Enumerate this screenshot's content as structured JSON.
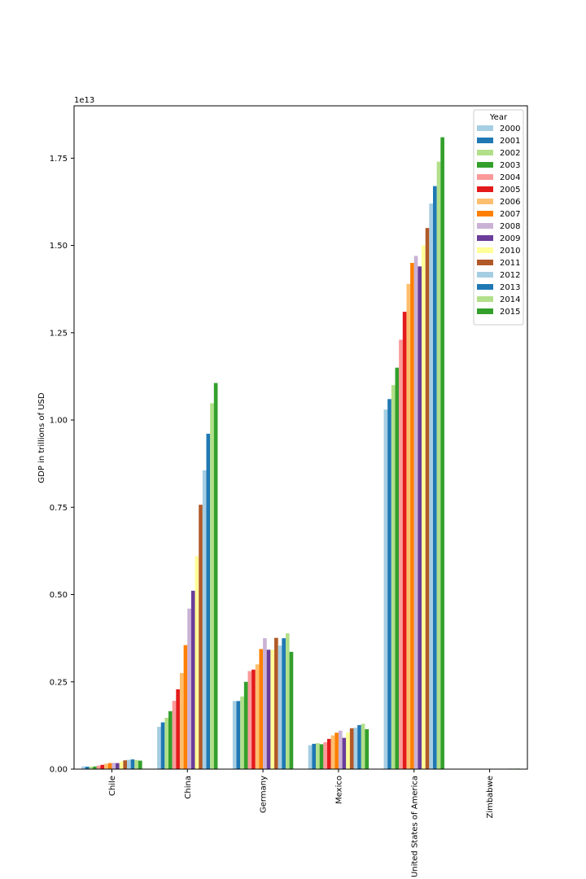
{
  "chart_data": {
    "type": "bar",
    "title": "",
    "xlabel": "",
    "ylabel": "GDP in trillions of USD",
    "offset_text": "1e13",
    "ylim": [
      0,
      19000000000000
    ],
    "yticks": [
      0,
      2500000000000,
      5000000000000,
      7500000000000,
      10000000000000,
      12500000000000,
      15000000000000,
      17500000000000
    ],
    "ytick_labels": [
      "0.00",
      "0.25",
      "0.50",
      "0.75",
      "1.00",
      "1.25",
      "1.50",
      "1.75"
    ],
    "categories": [
      "Chile",
      "China",
      "Germany",
      "Mexico",
      "United States of America",
      "Zimbabwe"
    ],
    "grid": false,
    "legend": {
      "title": "Year",
      "position": "top-right"
    },
    "series": [
      {
        "name": "2000",
        "color": "#a6cee3",
        "values": [
          77900000000,
          1211000000000,
          1950000000000,
          684000000000,
          10300000000000,
          6690000000
        ]
      },
      {
        "name": "2001",
        "color": "#1f78b4",
        "values": [
          70900000000,
          1339000000000,
          1950000000000,
          725000000000,
          10600000000000,
          6780000000
        ]
      },
      {
        "name": "2002",
        "color": "#b2df8a",
        "values": [
          69700000000,
          1471000000000,
          2080000000000,
          742000000000,
          11000000000000,
          6340000000
        ]
      },
      {
        "name": "2003",
        "color": "#33a02c",
        "values": [
          76000000000,
          1660000000000,
          2500000000000,
          713000000000,
          11500000000000,
          5730000000
        ]
      },
      {
        "name": "2004",
        "color": "#fb9a99",
        "values": [
          99200000000,
          1955000000000,
          2810000000000,
          770000000000,
          12300000000000,
          5810000000
        ]
      },
      {
        "name": "2005",
        "color": "#e31a1c",
        "values": [
          123000000000,
          2286000000000,
          2850000000000,
          866000000000,
          13100000000000,
          5760000000
        ]
      },
      {
        "name": "2006",
        "color": "#fdbf6f",
        "values": [
          154000000000,
          2752000000000,
          3000000000000,
          966000000000,
          13900000000000,
          5440000000
        ]
      },
      {
        "name": "2007",
        "color": "#ff7f00",
        "values": [
          173000000000,
          3552000000000,
          3440000000000,
          1043000000000,
          14500000000000,
          5290000000
        ]
      },
      {
        "name": "2008",
        "color": "#cab2d6",
        "values": [
          179000000000,
          4598000000000,
          3750000000000,
          1101000000000,
          14700000000000,
          4420000000
        ]
      },
      {
        "name": "2009",
        "color": "#6a3d9a",
        "values": [
          172000000000,
          5110000000000,
          3420000000000,
          895000000000,
          14400000000000,
          8160000000
        ]
      },
      {
        "name": "2010",
        "color": "#ffff99",
        "values": [
          218000000000,
          6100000000000,
          3420000000000,
          1051000000000,
          15000000000000,
          9420000000
        ]
      },
      {
        "name": "2011",
        "color": "#b15928",
        "values": [
          252000000000,
          7573000000000,
          3760000000000,
          1171000000000,
          15500000000000,
          10900000000
        ]
      },
      {
        "name": "2012",
        "color": "#a6cee3",
        "values": [
          267000000000,
          8560000000000,
          3540000000000,
          1186000000000,
          16200000000000,
          12400000000
        ]
      },
      {
        "name": "2013",
        "color": "#1f78b4",
        "values": [
          278000000000,
          9607000000000,
          3750000000000,
          1262000000000,
          16700000000000,
          13500000000
        ]
      },
      {
        "name": "2014",
        "color": "#b2df8a",
        "values": [
          261000000000,
          10480000000000,
          3890000000000,
          1298000000000,
          17400000000000,
          14200000000
        ]
      },
      {
        "name": "2015",
        "color": "#33a02c",
        "values": [
          243000000000,
          11060000000000,
          3360000000000,
          1144000000000,
          18100000000000,
          14400000000
        ]
      }
    ]
  }
}
